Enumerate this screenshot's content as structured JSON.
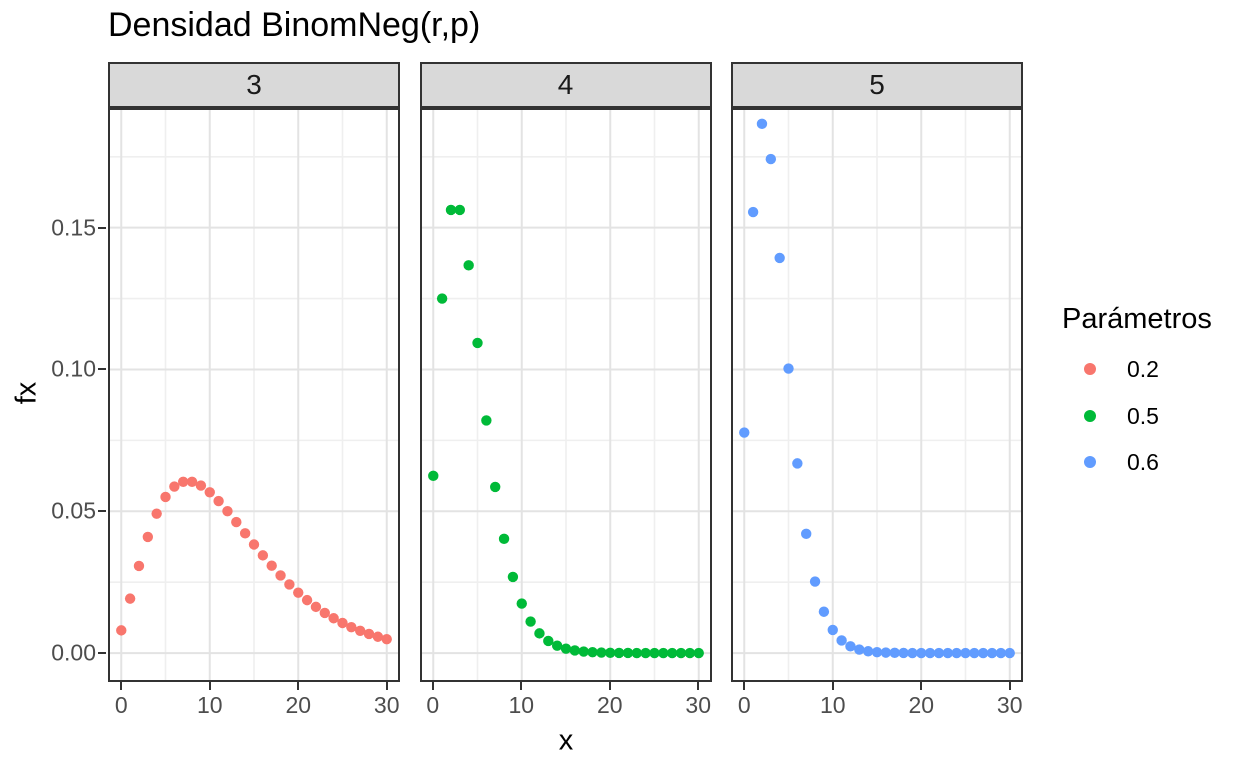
{
  "title": "Densidad BinomNeg(r,p)",
  "chart_data": {
    "type": "scatter",
    "title": "Densidad BinomNeg(r,p)",
    "xlabel": "x",
    "ylabel": "fx",
    "facet_labels": [
      "3",
      "4",
      "5"
    ],
    "x": [
      0,
      1,
      2,
      3,
      4,
      5,
      6,
      7,
      8,
      9,
      10,
      11,
      12,
      13,
      14,
      15,
      16,
      17,
      18,
      19,
      20,
      21,
      22,
      23,
      24,
      25,
      26,
      27,
      28,
      29,
      30
    ],
    "facets": [
      {
        "label": "3",
        "series_name": "0.2",
        "color": "#F8766D",
        "values": [
          0.008,
          0.0192,
          0.03072,
          0.04096,
          0.049152,
          0.05505,
          0.05872,
          0.060398,
          0.060398,
          0.059056,
          0.056694,
          0.053601,
          0.050028,
          0.046179,
          0.042221,
          0.038281,
          0.034452,
          0.030805,
          0.027382,
          0.024211,
          0.021306,
          0.018668,
          0.016292,
          0.014167,
          0.012278,
          0.010608,
          0.00914,
          0.007853,
          0.006731,
          0.005756,
          0.004912
        ]
      },
      {
        "label": "4",
        "series_name": "0.5",
        "color": "#00BA38",
        "values": [
          0.0625,
          0.125,
          0.15625,
          0.15625,
          0.136719,
          0.109375,
          0.082031,
          0.058594,
          0.040283,
          0.026855,
          0.017456,
          0.011108,
          0.006943,
          0.004272,
          0.002594,
          0.001556,
          0.000924,
          0.000544,
          0.000317,
          0.000184,
          0.000106,
          6e-05,
          3.4e-05,
          1.9e-05,
          1.1e-05,
          6e-06,
          3e-06,
          2e-06,
          1e-06,
          1e-06,
          0
        ]
      },
      {
        "label": "5",
        "series_name": "0.6",
        "color": "#619CFF",
        "values": [
          0.07776,
          0.15552,
          0.186624,
          0.174182,
          0.139346,
          0.100329,
          0.066886,
          0.042048,
          0.025227,
          0.014575,
          0.008162,
          0.004452,
          0.002374,
          0.001242,
          0.000639,
          0.000324,
          0.000162,
          8e-05,
          3.9e-05,
          1.9e-05,
          9e-06,
          4e-06,
          2e-06,
          1e-06,
          0,
          0,
          0,
          0,
          0,
          0,
          0
        ]
      }
    ],
    "x_ticks": [
      0,
      10,
      20,
      30
    ],
    "x_tick_labels": [
      "0",
      "10",
      "20",
      "30"
    ],
    "y_ticks": [
      0,
      0.05,
      0.1,
      0.15
    ],
    "y_tick_labels": [
      "0.00",
      "0.05",
      "0.10",
      "0.15"
    ],
    "x_minor": [
      5,
      15,
      25
    ],
    "y_minor": [
      0.025,
      0.075,
      0.125,
      0.175
    ],
    "xlim": [
      -1.5,
      31.5
    ],
    "ylim": [
      -0.0102,
      0.1922
    ],
    "grid": true,
    "legend": {
      "title": "Parámetros",
      "position": "right",
      "entries": [
        {
          "label": "0.2",
          "color": "#F8766D"
        },
        {
          "label": "0.5",
          "color": "#00BA38"
        },
        {
          "label": "0.6",
          "color": "#619CFF"
        }
      ]
    }
  },
  "colors": {
    "background": "#FFFFFF",
    "strip_bg": "#D9D9D9",
    "panel_border": "#333333",
    "grid_major": "#E3E3E3",
    "grid_minor": "#EFEFEF",
    "tick_text": "#4D4D4D",
    "point_red": "#F8766D",
    "point_green": "#00BA38",
    "point_blue": "#619CFF"
  }
}
